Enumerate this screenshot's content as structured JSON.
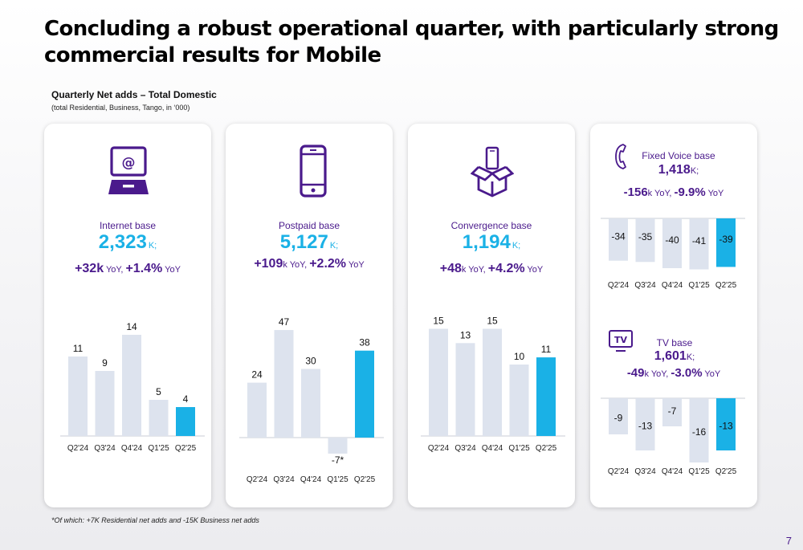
{
  "headline": "Concluding a robust operational quarter, with particularly strong commercial results for Mobile",
  "subtitle": "Quarterly Net adds – Total Domestic",
  "subnote": "(total Residential, Business, Tango, in ‘000)",
  "footnote": "*Of which: +7K Residential net adds and -15K Business net adds",
  "page_number": "7",
  "colors": {
    "accent": "#1ab1e6",
    "purple": "#4a1a8c",
    "bar": "#dde3ee"
  },
  "cards": [
    {
      "label": "Internet base",
      "value": "2,323",
      "unit": "K;",
      "yoy_abs": "+32k",
      "yoy_abs_unit": "YoY,",
      "yoy_pct": "+1.4%",
      "yoy_pct_unit": "YoY",
      "icon": "laptop-icon"
    },
    {
      "label": "Postpaid base",
      "value": "5,127",
      "unit": "K;",
      "yoy_abs": "+109",
      "yoy_abs_unit": "k YoY,",
      "yoy_pct": "+2.2%",
      "yoy_pct_unit": "YoY",
      "icon": "smartphone-icon"
    },
    {
      "label": "Convergence base",
      "value": "1,194",
      "unit": "K;",
      "yoy_abs": "+48",
      "yoy_abs_unit": "k YoY,",
      "yoy_pct": "+4.2%",
      "yoy_pct_unit": "YoY",
      "icon": "box-phone-icon"
    },
    {
      "label": "Fixed Voice base",
      "value": "1,418",
      "unit": "K;",
      "yoy_abs": "-156",
      "yoy_abs_unit": "k YoY,",
      "yoy_pct": "-9.9%",
      "yoy_pct_unit": "YoY",
      "icon": "phone-icon"
    },
    {
      "label": "TV base",
      "value": "1,601",
      "unit": "K;",
      "yoy_abs": "-49",
      "yoy_abs_unit": "k YoY,",
      "yoy_pct": "-3.0%",
      "yoy_pct_unit": "YoY",
      "icon": "tv-icon"
    }
  ],
  "chart_data": [
    {
      "type": "bar",
      "title": "",
      "categories": [
        "Q2'24",
        "Q3'24",
        "Q4'24",
        "Q1'25",
        "Q2'25"
      ],
      "values": [
        11,
        9,
        14,
        5,
        4
      ],
      "labels": [
        "11",
        "9",
        "14",
        "5",
        "4"
      ],
      "highlight_last": true
    },
    {
      "type": "bar",
      "title": "",
      "categories": [
        "Q2'24",
        "Q3'24",
        "Q4'24",
        "Q1'25",
        "Q2'25"
      ],
      "values": [
        24,
        47,
        30,
        -7,
        38
      ],
      "labels": [
        "24",
        "47",
        "30",
        "-7*",
        "38"
      ],
      "highlight_last": true
    },
    {
      "type": "bar",
      "title": "",
      "categories": [
        "Q2'24",
        "Q3'24",
        "Q4'24",
        "Q1'25",
        "Q2'25"
      ],
      "values": [
        15,
        13,
        15,
        10,
        11
      ],
      "labels": [
        "15",
        "13",
        "15",
        "10",
        "11"
      ],
      "highlight_last": true
    },
    {
      "type": "bar",
      "title": "",
      "categories": [
        "Q2'24",
        "Q3'24",
        "Q4'24",
        "Q1'25",
        "Q2'25"
      ],
      "values": [
        -34,
        -35,
        -40,
        -41,
        -39
      ],
      "labels": [
        "-34",
        "-35",
        "-40",
        "-41",
        "-39"
      ],
      "highlight_last": true
    },
    {
      "type": "bar",
      "title": "",
      "categories": [
        "Q2'24",
        "Q3'24",
        "Q4'24",
        "Q1'25",
        "Q2'25"
      ],
      "values": [
        -9,
        -13,
        -7,
        -16,
        -13
      ],
      "labels": [
        "-9",
        "-13",
        "-7",
        "-16",
        "-13"
      ],
      "highlight_last": true
    }
  ]
}
